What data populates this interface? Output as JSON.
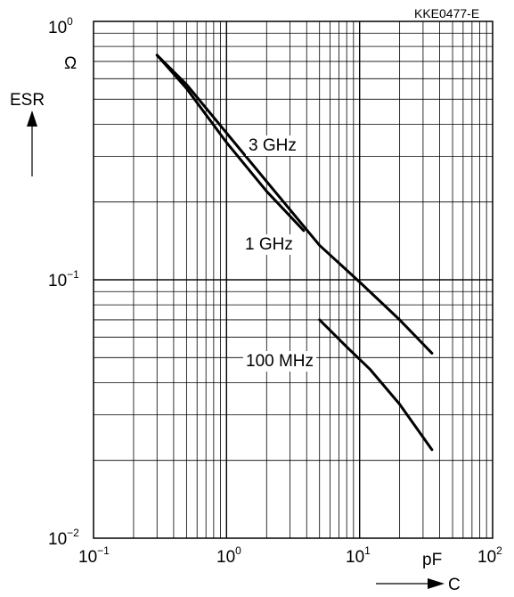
{
  "chart_data": {
    "type": "line",
    "code": "KKE0477-E",
    "x_scale": "log",
    "y_scale": "log",
    "xlim": [
      0.1,
      100
    ],
    "ylim": [
      0.01,
      1
    ],
    "grid": true,
    "x_ticks": [
      {
        "base": "10",
        "exp": "−1"
      },
      {
        "base": "10",
        "exp": "0"
      },
      {
        "base": "10",
        "exp": "1"
      },
      {
        "base": "10",
        "exp": "2"
      }
    ],
    "y_ticks": [
      {
        "base": "10",
        "exp": "0"
      },
      {
        "base": "10",
        "exp": "−1"
      },
      {
        "base": "10",
        "exp": "−2"
      }
    ],
    "x_unit": "pF",
    "x_label": "C",
    "y_unit": "Ω",
    "y_label": "ESR",
    "series": [
      {
        "name": "3 GHz",
        "x": [
          0.3,
          0.5,
          1,
          2,
          3.8
        ],
        "y": [
          0.74,
          0.55,
          0.34,
          0.22,
          0.155
        ]
      },
      {
        "name": "1 GHz",
        "x": [
          0.3,
          0.5,
          1,
          2,
          5,
          10,
          20,
          35
        ],
        "y": [
          0.74,
          0.57,
          0.37,
          0.24,
          0.136,
          0.098,
          0.07,
          0.052
        ]
      },
      {
        "name": "100 MHz",
        "x": [
          5,
          8,
          12,
          20,
          35
        ],
        "y": [
          0.07,
          0.055,
          0.045,
          0.033,
          0.022
        ]
      }
    ]
  }
}
